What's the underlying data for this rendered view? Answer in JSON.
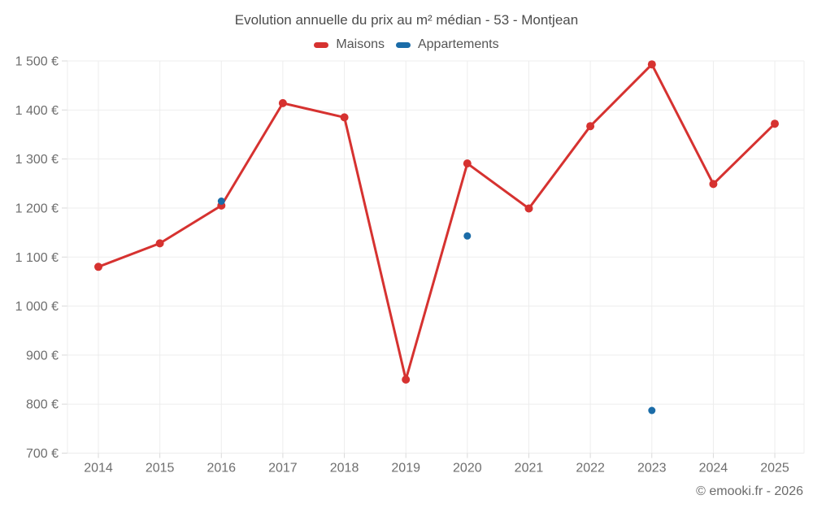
{
  "title": "Evolution annuelle du prix au m² médian - 53 - Montjean",
  "legend": [
    {
      "label": "Maisons",
      "color": "#d63230"
    },
    {
      "label": "Appartements",
      "color": "#1b6ca8"
    }
  ],
  "copyright": "© emooki.fr - 2026",
  "colors": {
    "maisons": "#d63230",
    "appartements": "#1b6ca8",
    "grid": "#ededed",
    "axis_label": "#6e6e6e",
    "title": "#4c4c4c"
  },
  "chart_data": {
    "type": "line",
    "title": "Evolution annuelle du prix au m² médian - 53 - Montjean",
    "xlabel": "",
    "ylabel": "",
    "grid": true,
    "legend_position": "top",
    "ylim": [
      700,
      1500
    ],
    "x": [
      2014,
      2015,
      2016,
      2017,
      2018,
      2019,
      2020,
      2021,
      2022,
      2023,
      2024,
      2025
    ],
    "x_tick_labels": [
      "2014",
      "2015",
      "2016",
      "2017",
      "2018",
      "2019",
      "2020",
      "2021",
      "2022",
      "2023",
      "2024",
      "2025"
    ],
    "y_ticks": [
      {
        "value": 1500,
        "label": "1 500 €"
      },
      {
        "value": 1400,
        "label": "1 400 €"
      },
      {
        "value": 1300,
        "label": "1 300 €"
      },
      {
        "value": 1200,
        "label": "1 200 €"
      },
      {
        "value": 1100,
        "label": "1 100 €"
      },
      {
        "value": 1000,
        "label": "1 000 €"
      },
      {
        "value": 900,
        "label": "900 €"
      },
      {
        "value": 800,
        "label": "800 €"
      },
      {
        "value": 700,
        "label": "700 €"
      }
    ],
    "series": [
      {
        "name": "Maisons",
        "color": "#d63230",
        "style": "line+markers",
        "values": [
          1080,
          1128,
          1205,
          1414,
          1385,
          850,
          1291,
          1199,
          1367,
          1493,
          1249,
          1372
        ]
      },
      {
        "name": "Appartements",
        "color": "#1b6ca8",
        "style": "markers",
        "values": [
          null,
          null,
          1214,
          null,
          null,
          null,
          1143,
          null,
          null,
          787,
          null,
          null
        ]
      }
    ]
  }
}
